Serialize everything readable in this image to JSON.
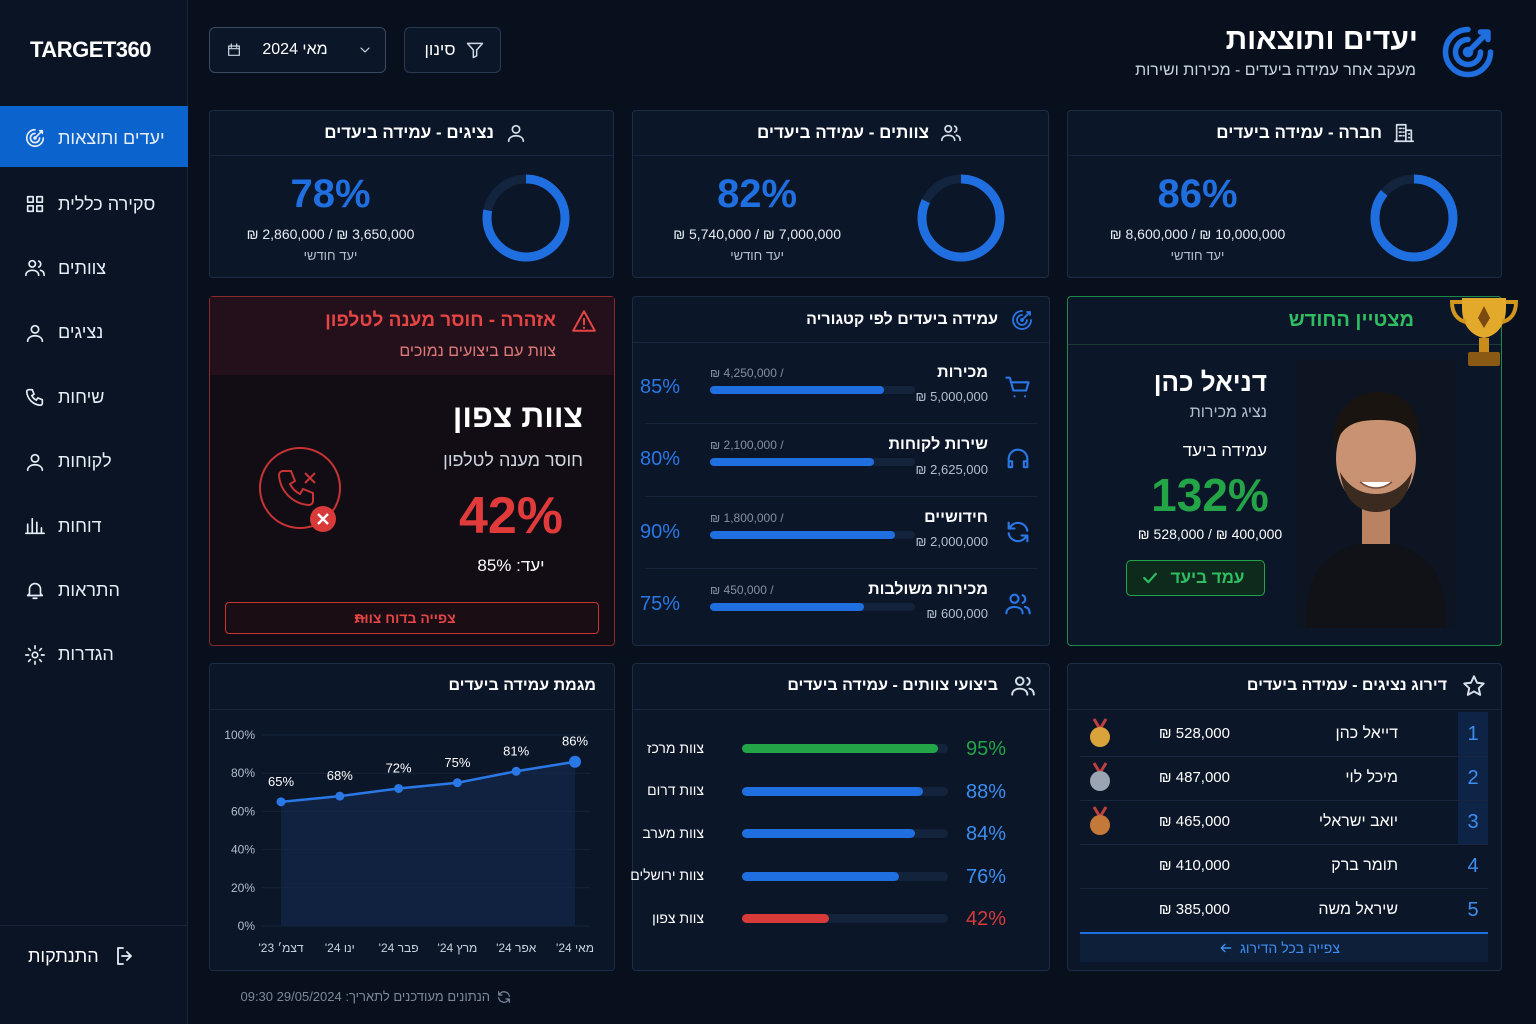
{
  "sidebar": {
    "logo": "TARGET360",
    "nav": [
      "יעדים ותוצאות",
      "סקירה כללית",
      "צוותים",
      "נציגים",
      "שיחות",
      "לקוחות",
      "דוחות",
      "התראות",
      "הגדרות"
    ],
    "logout": "התנתקות"
  },
  "header": {
    "title": "יעדים ותוצאות",
    "subtitle": "מעקב אחר עמידה ביעדים - מכירות ושירות",
    "date": "מאי 2024",
    "filter": "סינון"
  },
  "kpis": [
    {
      "title": "חברה - עמידה ביעדים",
      "value": 86,
      "value_label": "86%",
      "amounts": "₪ 8,600,000 / ₪ 10,000,000",
      "note": "יעד חודשי"
    },
    {
      "title": "צוותים - עמידה ביעדים",
      "value": 82,
      "value_label": "82%",
      "amounts": "₪ 5,740,000 / ₪ 7,000,000",
      "note": "יעד חודשי"
    },
    {
      "title": "נציגים - עמידה ביעדים",
      "value": 78,
      "value_label": "78%",
      "amounts": "₪ 2,860,000 / ₪ 3,650,000",
      "note": "יעד חודשי"
    }
  ],
  "alert": {
    "title": "אזהרה - חוסר מענה לטלפון",
    "subtitle": "צוות עם ביצועים נמוכים",
    "team": "צוות צפון",
    "issue": "חוסר מענה לטלפון",
    "value": 42,
    "value_label": "42%",
    "target": "יעד: 85%",
    "button": "צפייה בדוח צוות"
  },
  "categories": {
    "title": "עמידה ביעדים לפי קטגוריה",
    "items": [
      {
        "name": "מכירות",
        "value": 85,
        "value_label": "85%",
        "actual": "₪ 4,250,000 /",
        "target": "₪ 5,000,000"
      },
      {
        "name": "שירות לקוחות",
        "value": 80,
        "value_label": "80%",
        "actual": "₪ 2,100,000 /",
        "target": "₪ 2,625,000"
      },
      {
        "name": "חידושיים",
        "value": 90,
        "value_label": "90%",
        "actual": "₪ 1,800,000 /",
        "target": "₪ 2,000,000"
      },
      {
        "name": "מכירות משולבות",
        "value": 75,
        "value_label": "75%",
        "actual": "₪ 450,000 /",
        "target": "₪ 600,000"
      }
    ]
  },
  "star": {
    "title": "מצטיין החודש",
    "name": "דניאל כהן",
    "role": "נציג מכירות",
    "label": "עמידה ביעד",
    "value": 132,
    "value_label": "132%",
    "amounts": "₪ 528,000 / ₪ 400,000",
    "badge": "עמד ביעד"
  },
  "trend": {
    "type": "line",
    "title": "מגמת עמידה ביעדים",
    "categories": [
      "דצמ׳ 23'",
      "ינו 24'",
      "פבר 24'",
      "מרץ 24'",
      "אפר 24'",
      "מאי 24'"
    ],
    "values": [
      65,
      68,
      72,
      75,
      81,
      86
    ],
    "value_labels": [
      "65%",
      "68%",
      "72%",
      "75%",
      "81%",
      "86%"
    ],
    "ylim": [
      0,
      100
    ],
    "yticks": [
      {
        "value": 0,
        "label": "0%"
      },
      {
        "value": 20,
        "label": "20%"
      },
      {
        "value": 40,
        "label": "40%"
      },
      {
        "value": 60,
        "label": "60%"
      },
      {
        "value": 80,
        "label": "80%"
      },
      {
        "value": 100,
        "label": "100%"
      }
    ],
    "color": "#2a78e6"
  },
  "teams": {
    "title": "ביצועי צוותים - עמידה ביעדים",
    "items": [
      {
        "name": "צוות מרכז",
        "value": 95,
        "value_label": "95%",
        "color": "#22a447"
      },
      {
        "name": "צוות דרום",
        "value": 88,
        "value_label": "88%",
        "color": "#1f6fe0"
      },
      {
        "name": "צוות מערב",
        "value": 84,
        "value_label": "84%",
        "color": "#1f6fe0"
      },
      {
        "name": "צוות ירושלים",
        "value": 76,
        "value_label": "76%",
        "color": "#1f6fe0"
      },
      {
        "name": "צוות צפון",
        "value": 42,
        "value_label": "42%",
        "color": "#d83a3a"
      }
    ]
  },
  "ranking": {
    "title": "דירוג נציגים - עמידה ביעדים",
    "rows": [
      {
        "rank": 1,
        "name": "דייאל כהן",
        "amount": "₪ 528,000"
      },
      {
        "rank": 2,
        "name": "מיכל לוי",
        "amount": "₪ 487,000"
      },
      {
        "rank": 3,
        "name": "יואב ישראלי",
        "amount": "₪ 465,000"
      },
      {
        "rank": 4,
        "name": "תומר ברק",
        "amount": "₪ 410,000"
      },
      {
        "rank": 5,
        "name": "שיראל משה",
        "amount": "₪ 385,000"
      }
    ],
    "button": "צפייה בכל הדירוג"
  },
  "footer": {
    "updated": "הנתונים מעודכנים לתאריך: 29/05/2024 09:30"
  }
}
